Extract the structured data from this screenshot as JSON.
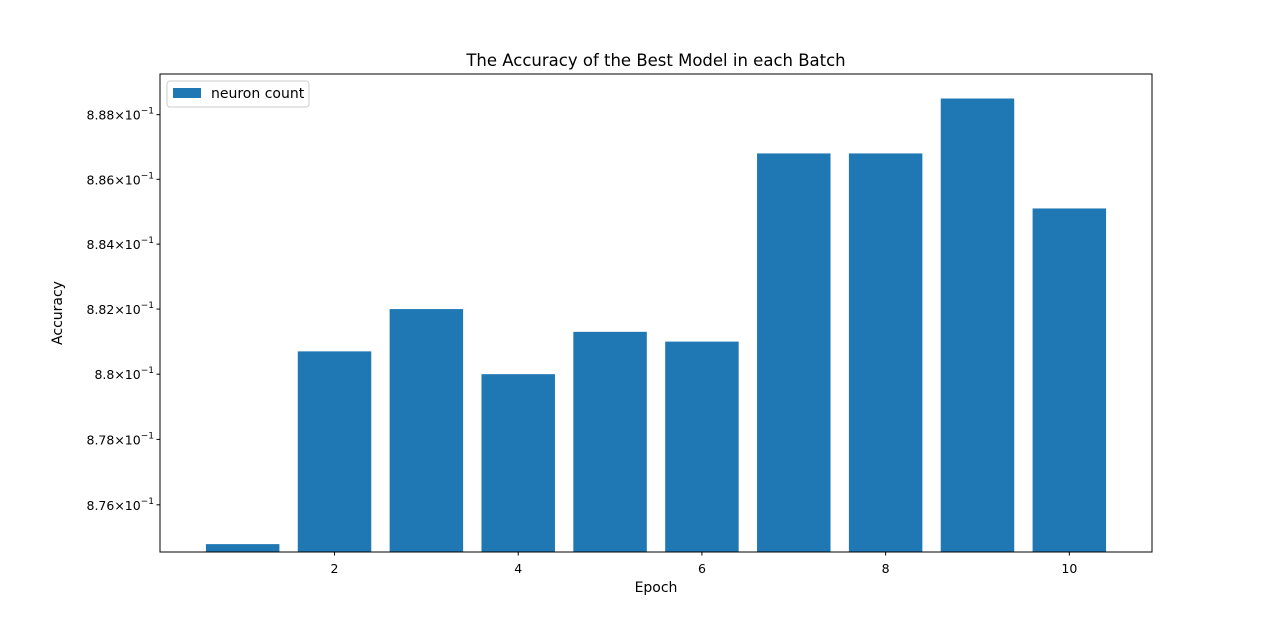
{
  "chart_data": {
    "type": "bar",
    "title": "The Accuracy of the Best Model in each Batch",
    "xlabel": "Epoch",
    "ylabel": "Accuracy",
    "yscale": "log",
    "x": [
      1,
      2,
      3,
      4,
      5,
      6,
      7,
      8,
      9,
      10
    ],
    "series": [
      {
        "name": "neuron count",
        "color": "#1f77b4",
        "values": [
          0.8748,
          0.8807,
          0.882,
          0.88,
          0.8813,
          0.881,
          0.8868,
          0.8868,
          0.8885,
          0.8851
        ]
      }
    ],
    "xlim": [
      0.1,
      10.9
    ],
    "ylim": [
      0.87456,
      0.88926
    ],
    "x_ticks": [
      {
        "value": 2,
        "label": "2"
      },
      {
        "value": 4,
        "label": "4"
      },
      {
        "value": 6,
        "label": "6"
      },
      {
        "value": 8,
        "label": "8"
      },
      {
        "value": 10,
        "label": "10"
      }
    ],
    "y_ticks": [
      {
        "value": 0.876,
        "mantissa": "8.76",
        "base": "10",
        "exponent": "−1"
      },
      {
        "value": 0.878,
        "mantissa": "8.78",
        "base": "10",
        "exponent": "−1"
      },
      {
        "value": 0.88,
        "mantissa": "8.8",
        "base": "10",
        "exponent": "−1"
      },
      {
        "value": 0.882,
        "mantissa": "8.82",
        "base": "10",
        "exponent": "−1"
      },
      {
        "value": 0.884,
        "mantissa": "8.84",
        "base": "10",
        "exponent": "−1"
      },
      {
        "value": 0.886,
        "mantissa": "8.86",
        "base": "10",
        "exponent": "−1"
      },
      {
        "value": 0.888,
        "mantissa": "8.88",
        "base": "10",
        "exponent": "−1"
      }
    ],
    "grid": false,
    "legend": {
      "position": "upper-left",
      "labels": [
        "neuron count"
      ]
    }
  }
}
